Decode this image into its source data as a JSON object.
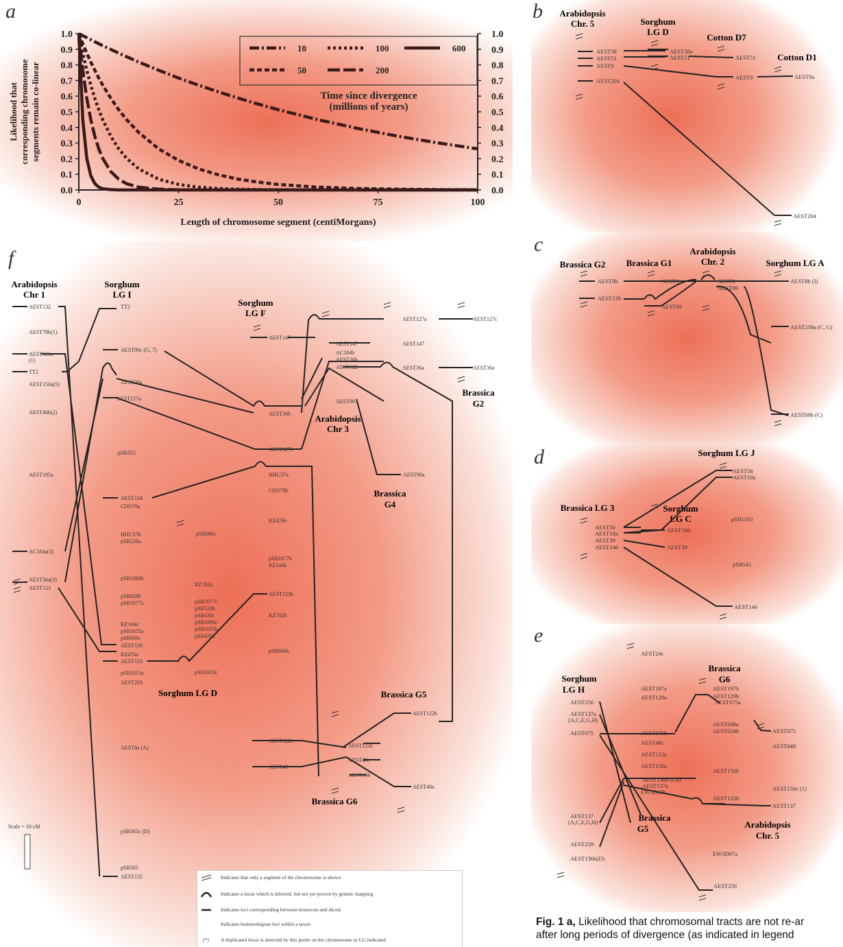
{
  "panel_labels": {
    "a": "a",
    "b": "b",
    "c": "c",
    "d": "d",
    "e": "e",
    "f": "f"
  },
  "chart_data": {
    "type": "line",
    "xlabel": "Length of chromosome segment (centiMorgans)",
    "ylabel": "Likelihood that corresponding chromosome segments remain co-linear",
    "ylabel_lines": [
      "Likelihood that",
      "corresponding chromosome",
      "segments remain co-linear"
    ],
    "xlim": [
      0,
      100
    ],
    "ylim": [
      0,
      1.0
    ],
    "xticks": [
      "0",
      "25",
      "50",
      "75",
      "100"
    ],
    "yticks": [
      "0.0",
      "0.1",
      "0.2",
      "0.3",
      "0.4",
      "0.5",
      "0.6",
      "0.7",
      "0.8",
      "0.9",
      "1.0"
    ],
    "legend_title": [
      "Time since divergence",
      "(millions of years)"
    ],
    "legend_placement": "top-right",
    "x": [
      0,
      1,
      2,
      3,
      4,
      5,
      6,
      8,
      10,
      12,
      15,
      20,
      25,
      30,
      35,
      40,
      45,
      50,
      60,
      70,
      80,
      90,
      100
    ],
    "series": [
      {
        "name": "10",
        "style": "dash-dot",
        "values": [
          1.0,
          0.987,
          0.974,
          0.961,
          0.948,
          0.935,
          0.923,
          0.899,
          0.875,
          0.852,
          0.818,
          0.766,
          0.716,
          0.67,
          0.627,
          0.587,
          0.549,
          0.513,
          0.449,
          0.393,
          0.344,
          0.301,
          0.263
        ]
      },
      {
        "name": "50",
        "style": "heavy-dash",
        "values": [
          1.0,
          0.935,
          0.875,
          0.818,
          0.766,
          0.716,
          0.67,
          0.587,
          0.513,
          0.449,
          0.368,
          0.263,
          0.189,
          0.135,
          0.097,
          0.069,
          0.05,
          0.035,
          0.018,
          0.009,
          0.005,
          0.002,
          0.001
        ]
      },
      {
        "name": "100",
        "style": "dotted",
        "values": [
          1.0,
          0.875,
          0.766,
          0.67,
          0.587,
          0.513,
          0.449,
          0.344,
          0.263,
          0.202,
          0.135,
          0.069,
          0.035,
          0.018,
          0.009,
          0.005,
          0.002,
          0.001,
          0.0,
          0.0,
          0.0,
          0.0,
          0.0
        ]
      },
      {
        "name": "200",
        "style": "long-dash",
        "values": [
          1.0,
          0.766,
          0.587,
          0.449,
          0.344,
          0.263,
          0.202,
          0.118,
          0.069,
          0.04,
          0.018,
          0.005,
          0.001,
          0.0,
          0.0,
          0.0,
          0.0,
          0.0,
          0.0,
          0.0,
          0.0,
          0.0,
          0.0
        ]
      },
      {
        "name": "600",
        "style": "solid",
        "values": [
          1.0,
          0.449,
          0.202,
          0.091,
          0.041,
          0.018,
          0.008,
          0.002,
          0.0,
          0.0,
          0.0,
          0.0,
          0.0,
          0.0,
          0.0,
          0.0,
          0.0,
          0.0,
          0.0,
          0.0,
          0.0,
          0.0,
          0.0
        ]
      }
    ]
  },
  "panel_b": {
    "titles": {
      "arabidopsis": [
        "Arabidopsis",
        "Chr. 5"
      ],
      "sorghum": [
        "Sorghum",
        "LG D"
      ],
      "cotton_d7": "Cotton D7",
      "cotton_d1": "Cotton D1"
    },
    "labels": [
      "AEST38",
      "AEST51",
      "AEST9",
      "AEST204",
      "AEST38a",
      "AEST51",
      "AEST51",
      "AEST9",
      "AEST9a",
      "AEST204"
    ]
  },
  "panel_c": {
    "titles": {
      "g2": "Brassica G2",
      "g1": "Brassica G1",
      "arab": [
        "Arabidopsis",
        "Chr. 2"
      ],
      "sorg": "Sorghum LG A"
    },
    "labels": [
      "AEST8b",
      "AEST239",
      "AEST8",
      "AEST69",
      "AEST8",
      "AEST69",
      "AEST8b (I)",
      "AEST239a (C, G)",
      "AEST69b (C)"
    ]
  },
  "panel_d": {
    "titles": {
      "j": "Sorghum LG J",
      "b3": "Brassica LG 3",
      "c": [
        "Sorghum",
        "LG C"
      ]
    },
    "labels": [
      "AEST56",
      "AEST18a",
      "AEST39",
      "AEST146",
      "AEST56",
      "AEST18a",
      "AEST18d",
      "AEST39",
      "pSB1163",
      "pSB541",
      "AEST146"
    ]
  },
  "panel_e": {
    "titles": {
      "h": [
        "Sorghum",
        "LG H"
      ],
      "g6": [
        "Brassica",
        "G6"
      ],
      "g5": [
        "Brassica",
        "G5"
      ],
      "chr5": [
        "Arabidopsis",
        "Chr. 5"
      ]
    },
    "labels": [
      "AEST24c",
      "AEST256",
      "AEST137a",
      "(A,C,E,G,H)",
      "AEST075",
      "AEST197a",
      "AEST129a",
      "AEST075b",
      "AEST48c",
      "AEST122a",
      "AEST150a",
      "AEST136b (G8)",
      "AEST137a",
      "EW3D07b",
      "AEST137",
      "(A,C,E,G,H)",
      "AEST259",
      "AEST136b(D)",
      "AEST197b",
      "AEST129b",
      "AEST075a",
      "AEST048a",
      "AEST024b",
      "AEST150b",
      "AEST122b",
      "EW3D07a",
      "AEST075",
      "AEST048",
      "AEST150c (1)",
      "AEST137",
      "AEST256"
    ]
  },
  "panel_f": {
    "titles": {
      "arab1": [
        "Arabidopsis",
        "Chr 1"
      ],
      "sorgI": [
        "Sorghum",
        "LG I"
      ],
      "sorgF": [
        "Sorghum",
        "LG F"
      ],
      "arab3": [
        "Arabidopsis",
        "Chr 3"
      ],
      "bG2": [
        "Brassica",
        "G2"
      ],
      "bG4": [
        "Brassica",
        "G4"
      ],
      "sorgD": "Sorghum LG D",
      "bG5": "Brassica G5",
      "bG6": "Brassica G6"
    },
    "chr1": [
      "AEST132",
      "AEST78b(1)",
      "AEST126a",
      "(1)",
      "TT2",
      "AEST150a(5)",
      "AEST46b(2)",
      "AEST195a",
      "AC184a(3)",
      "AEST36a(3)",
      "AEST123"
    ],
    "sorgI": [
      "TT2",
      "AEST90c (G, 7)",
      "AEST36a",
      "AEST127a",
      "pSB355",
      "AEST134",
      "CDO78a",
      "HHU37b",
      "pSB520a",
      "pSB1066b",
      "pSB428b",
      "pSB1677a",
      "RZ144a",
      "pSB1655a",
      "pSB430c",
      "AEST126",
      "RZ476a",
      "AEST123",
      "pSB1813a",
      "AEST203",
      "AEST8a (A)",
      "pSB365c (D)",
      "pSB305",
      "AEST132"
    ],
    "sorgD": [
      "pSB666c",
      "RZ782a",
      "pSB1677c",
      "pSB520b",
      "pSB430c",
      "pSB1066c",
      "pSB1655b",
      "pSB428a",
      "pSB1813c"
    ],
    "sorgF": [
      "AEST147",
      "AEST36b",
      "AEST127b",
      "HHU37a",
      "CDO78b",
      "RZ476b",
      "pSB1677b",
      "RZ144b",
      "AEST123b",
      "RZ782b",
      "pSB666b",
      "AEST122b",
      "AEST48"
    ],
    "arab3": [
      "AEST147",
      "AC184b",
      "AEST36b",
      "AEST122",
      "AEST90",
      "AEST147",
      "AEST127a",
      "AEST127c",
      "AEST36a",
      "AEST36a",
      "AEST90a"
    ],
    "brass": [
      "AEST122a",
      "AEST48c",
      "AEST134",
      "AEST122b",
      "AEST48a"
    ],
    "scale": "Scale = 10 cM",
    "legend": [
      "Indicates that only a segment of the chromosome is shown",
      "Indicates a locus which is inferred, but not yet proven by genetic mapping",
      "Indicates loci corresponding between monocots and dicots",
      "Indicates homoeologous loci within a taxon",
      "A duplicated locus is detected by this probe on the chromosome or LG indicated"
    ],
    "legend_star": "(*)"
  },
  "caption": {
    "bold": "Fig. 1 a,",
    "line1": " Likelihood that chromosomal tracts are not re-ar",
    "line2": "after long periods of divergence (as indicated in legend",
    "line3": "..."
  }
}
